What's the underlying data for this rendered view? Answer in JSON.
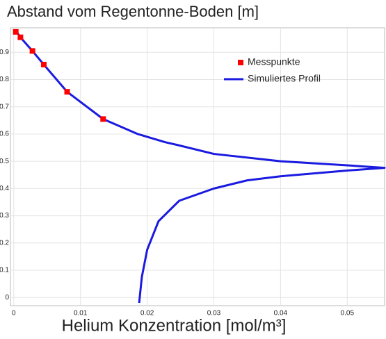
{
  "chart_data": {
    "type": "scatter",
    "title": "Abstand vom Regentonne-Boden [m]",
    "x_label": "Helium Konzentration [mol/m³]",
    "xlim": [
      -0.0005,
      0.0556
    ],
    "ylim": [
      -0.03,
      0.99
    ],
    "xticks": [
      0,
      0.01,
      0.02,
      0.03,
      0.04,
      0.05
    ],
    "yticks": [
      0,
      0.1,
      0.2,
      0.3,
      0.4,
      0.5,
      0.6,
      0.7,
      0.8,
      0.9
    ],
    "grid": true,
    "legend": "upper right",
    "series": [
      {
        "name": "Messpunkte",
        "type": "scatter",
        "color": "#ff0000",
        "x": [
          0.0003,
          0.001,
          0.0028,
          0.0045,
          0.008,
          0.0134
        ],
        "values": [
          0.975,
          0.955,
          0.905,
          0.855,
          0.755,
          0.655
        ]
      },
      {
        "name": "Simuliertes Profil",
        "type": "line",
        "color": "#1a1ae0",
        "x": [
          0.0003,
          0.001,
          0.0028,
          0.0045,
          0.008,
          0.0134,
          0.0186,
          0.0227,
          0.0245,
          0.03,
          0.04,
          0.05,
          0.0556,
          0.05,
          0.04,
          0.035,
          0.03,
          0.0248,
          0.0217,
          0.02,
          0.0192,
          0.0188
        ],
        "values": [
          0.98,
          0.955,
          0.905,
          0.855,
          0.755,
          0.655,
          0.6,
          0.57,
          0.56,
          0.527,
          0.5,
          0.485,
          0.476,
          0.466,
          0.445,
          0.43,
          0.4,
          0.355,
          0.28,
          0.175,
          0.075,
          -0.02
        ]
      }
    ]
  }
}
